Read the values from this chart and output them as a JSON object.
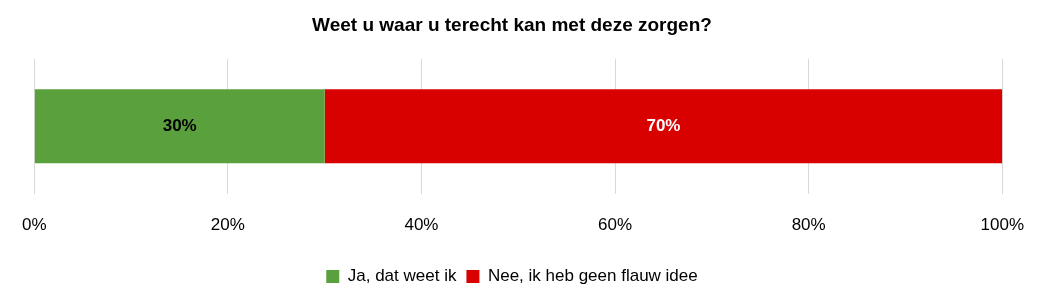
{
  "chart_data": {
    "type": "bar",
    "orientation": "horizontal",
    "stacked": true,
    "title": "Weet u waar u terecht kan met deze zorgen?",
    "categories": [
      null
    ],
    "series": [
      {
        "name": "Ja, dat weet ik",
        "color": "#5aa03c",
        "values": [
          30
        ],
        "value_labels": [
          "30%"
        ]
      },
      {
        "name": "Nee, ik heb geen flauw idee",
        "color": "#d90000",
        "values": [
          70
        ],
        "value_labels": [
          "70%"
        ]
      }
    ],
    "xlim": [
      0,
      100
    ],
    "xticks": [
      {
        "value": 0,
        "label": "0%"
      },
      {
        "value": 20,
        "label": "20%"
      },
      {
        "value": 40,
        "label": "40%"
      },
      {
        "value": 60,
        "label": "60%"
      },
      {
        "value": 80,
        "label": "80%"
      },
      {
        "value": 100,
        "label": "100%"
      }
    ],
    "grid": "x",
    "legend": "bottom"
  }
}
